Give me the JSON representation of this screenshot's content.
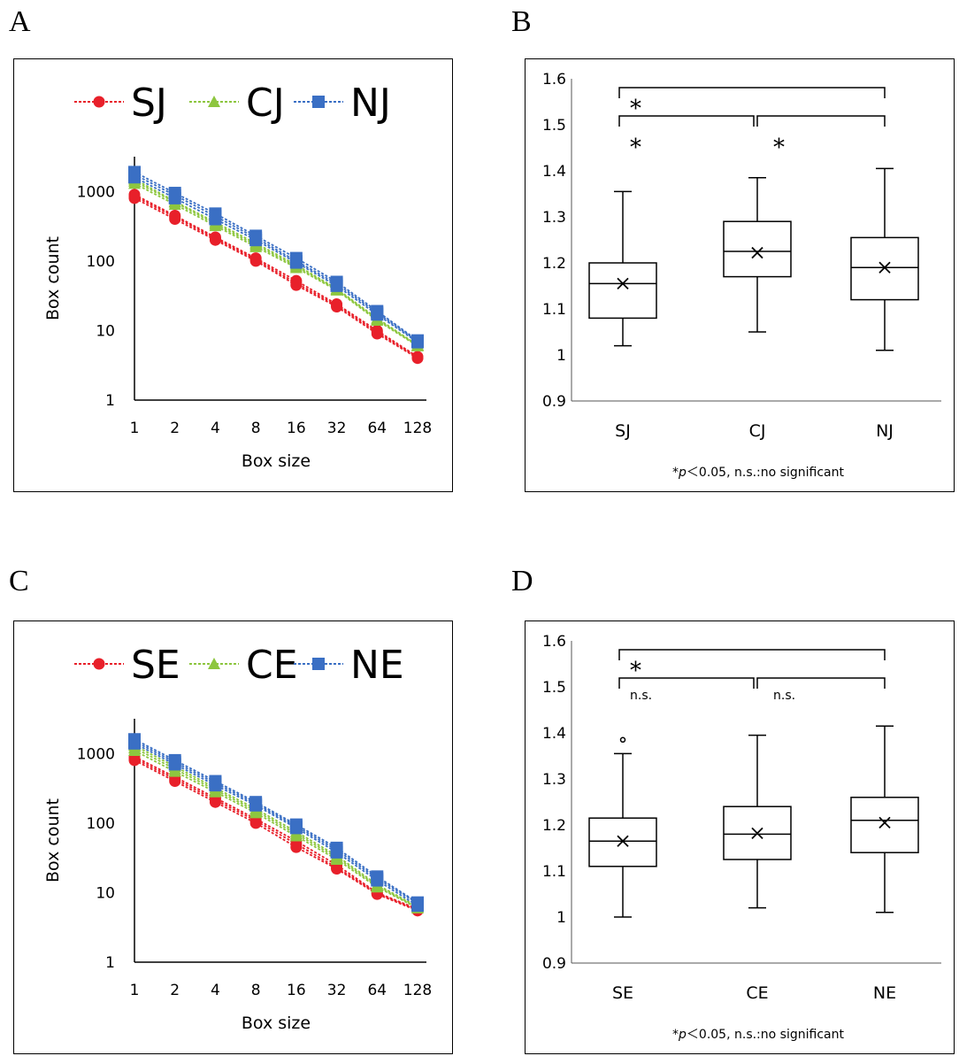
{
  "panel_labels": {
    "a": "A",
    "b": "B",
    "c": "C",
    "d": "D"
  },
  "chart_data": [
    {
      "id": "A",
      "type": "line",
      "yscale": "log",
      "xlabel": "Box size",
      "ylabel": "Box count",
      "x": [
        1,
        2,
        4,
        8,
        16,
        32,
        64,
        128
      ],
      "x_ticklabels": [
        "1",
        "2",
        "4",
        "8",
        "16",
        "32",
        "64",
        "128"
      ],
      "y_ticklabels": [
        "1",
        "10",
        "100",
        "1000"
      ],
      "ylim": [
        1,
        3000
      ],
      "legend_position": "top",
      "series": [
        {
          "name": "SJ",
          "color": "#e8202a",
          "marker": "circle",
          "lines": [
            [
              800,
              400,
              200,
              100,
              45,
              22,
              9,
              4
            ],
            [
              900,
              450,
              220,
              110,
              52,
              24,
              10,
              4.2
            ],
            [
              850,
              430,
              210,
              105,
              48,
              23,
              9.5,
              4.1
            ]
          ]
        },
        {
          "name": "CJ",
          "color": "#8dc63f",
          "marker": "triangle",
          "lines": [
            [
              1300,
              650,
              320,
              160,
              80,
              38,
              14,
              6
            ],
            [
              1500,
              720,
              360,
              180,
              88,
              40,
              15,
              6.2
            ],
            [
              1400,
              700,
              340,
              170,
              84,
              39,
              14.5,
              6.1
            ]
          ]
        },
        {
          "name": "NJ",
          "color": "#3a6fc4",
          "marker": "square",
          "lines": [
            [
              1600,
              800,
              400,
              200,
              95,
              44,
              17,
              6.8
            ],
            [
              1900,
              950,
              480,
              230,
              110,
              50,
              19,
              7.2
            ],
            [
              1750,
              880,
              440,
              215,
              100,
              47,
              18,
              7
            ]
          ]
        }
      ]
    },
    {
      "id": "B",
      "type": "box",
      "categories": [
        "SJ",
        "CJ",
        "NJ"
      ],
      "ylim": [
        0.9,
        1.6
      ],
      "y_ticklabels": [
        "0.9",
        "1",
        "1.1",
        "1.2",
        "1.3",
        "1.4",
        "1.5",
        "1.6"
      ],
      "boxes": [
        {
          "min": 1.02,
          "q1": 1.08,
          "median": 1.155,
          "mean": 1.155,
          "q3": 1.2,
          "max": 1.355
        },
        {
          "min": 1.05,
          "q1": 1.17,
          "median": 1.225,
          "mean": 1.222,
          "q3": 1.29,
          "max": 1.385
        },
        {
          "min": 1.01,
          "q1": 1.12,
          "median": 1.19,
          "mean": 1.19,
          "q3": 1.255,
          "max": 1.405
        }
      ],
      "comparisons": [
        {
          "from": 0,
          "to": 1,
          "label": "*"
        },
        {
          "from": 1,
          "to": 2,
          "label": "*"
        },
        {
          "from": 0,
          "to": 2,
          "label": "*"
        }
      ],
      "note_prefix": "*",
      "note_p": "p",
      "note_rest": "＜0.05, n.s.:no significant"
    },
    {
      "id": "C",
      "type": "line",
      "yscale": "log",
      "xlabel": "Box size",
      "ylabel": "Box count",
      "x": [
        1,
        2,
        4,
        8,
        16,
        32,
        64,
        128
      ],
      "x_ticklabels": [
        "1",
        "2",
        "4",
        "8",
        "16",
        "32",
        "64",
        "128"
      ],
      "y_ticklabels": [
        "1",
        "10",
        "100",
        "1000"
      ],
      "ylim": [
        1,
        3000
      ],
      "legend_position": "top",
      "series": [
        {
          "name": "SE",
          "color": "#e8202a",
          "marker": "circle",
          "lines": [
            [
              800,
              400,
              200,
              100,
              45,
              22,
              9.5,
              5.5
            ],
            [
              900,
              460,
              230,
              115,
              55,
              25,
              10,
              5.8
            ],
            [
              850,
              430,
              215,
              108,
              50,
              23,
              9.8,
              5.6
            ]
          ]
        },
        {
          "name": "CE",
          "color": "#8dc63f",
          "marker": "triangle",
          "lines": [
            [
              1100,
              550,
              280,
              140,
              65,
              30,
              12,
              6
            ],
            [
              1300,
              650,
              320,
              160,
              75,
              34,
              13,
              6.3
            ],
            [
              1200,
              600,
              300,
              150,
              70,
              32,
              12.5,
              6.1
            ]
          ]
        },
        {
          "name": "NE",
          "color": "#3a6fc4",
          "marker": "square",
          "lines": [
            [
              1400,
              700,
              350,
              180,
              85,
              38,
              15,
              6.5
            ],
            [
              1600,
              800,
              400,
              200,
              95,
              44,
              17,
              7.2
            ],
            [
              1500,
              750,
              375,
              190,
              90,
              41,
              16,
              7
            ]
          ]
        }
      ]
    },
    {
      "id": "D",
      "type": "box",
      "categories": [
        "SE",
        "CE",
        "NE"
      ],
      "ylim": [
        0.9,
        1.6
      ],
      "y_ticklabels": [
        "0.9",
        "1",
        "1.1",
        "1.2",
        "1.3",
        "1.4",
        "1.5",
        "1.6"
      ],
      "boxes": [
        {
          "min": 1.0,
          "q1": 1.11,
          "median": 1.165,
          "mean": 1.165,
          "q3": 1.215,
          "max": 1.355,
          "outliers": [
            1.385
          ]
        },
        {
          "min": 1.02,
          "q1": 1.125,
          "median": 1.18,
          "mean": 1.182,
          "q3": 1.24,
          "max": 1.395
        },
        {
          "min": 1.01,
          "q1": 1.14,
          "median": 1.21,
          "mean": 1.205,
          "q3": 1.26,
          "max": 1.415
        }
      ],
      "comparisons": [
        {
          "from": 0,
          "to": 1,
          "label": "n.s."
        },
        {
          "from": 1,
          "to": 2,
          "label": "n.s."
        },
        {
          "from": 0,
          "to": 2,
          "label": "*"
        }
      ],
      "note_prefix": "*",
      "note_p": "p",
      "note_rest": "＜0.05, n.s.:no significant"
    }
  ]
}
